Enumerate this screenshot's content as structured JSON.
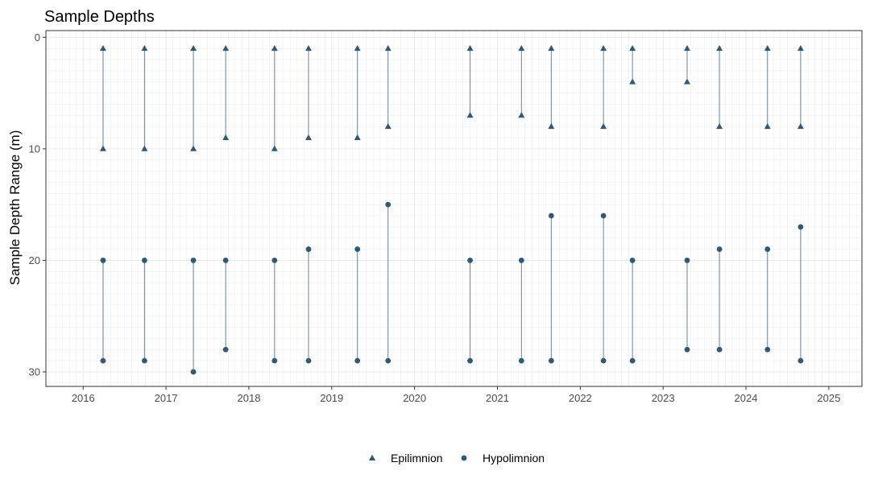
{
  "chart_data": {
    "type": "scatter",
    "title": "Sample Depths",
    "xlabel": "",
    "ylabel": "Sample Depth Range (m)",
    "x_ticks": [
      "2016",
      "2017",
      "2018",
      "2019",
      "2020",
      "2021",
      "2022",
      "2023",
      "2024",
      "2025"
    ],
    "y_ticks": [
      "0",
      "10",
      "20",
      "30"
    ],
    "xlim": [
      2015.55,
      2025.4
    ],
    "ylim": [
      31.3,
      -0.6
    ],
    "y_reversed": true,
    "grid": true,
    "legend_position": "bottom",
    "colors": {
      "points": "#2e5a7a",
      "segments": "#708090",
      "grid": "#ebebeb",
      "panel_border": "#333333"
    },
    "series": [
      {
        "name": "Epilimnion",
        "marker": "triangle",
        "points": [
          {
            "x": 2016.24,
            "top": 1,
            "bottom": 10
          },
          {
            "x": 2016.74,
            "top": 1,
            "bottom": 10
          },
          {
            "x": 2017.33,
            "top": 1,
            "bottom": 10
          },
          {
            "x": 2017.72,
            "top": 1,
            "bottom": 9
          },
          {
            "x": 2018.31,
            "top": 1,
            "bottom": 10
          },
          {
            "x": 2018.72,
            "top": 1,
            "bottom": 9
          },
          {
            "x": 2019.31,
            "top": 1,
            "bottom": 9
          },
          {
            "x": 2019.68,
            "top": 1,
            "bottom": 8
          },
          {
            "x": 2020.67,
            "top": 1,
            "bottom": 7
          },
          {
            "x": 2021.29,
            "top": 1,
            "bottom": 7
          },
          {
            "x": 2021.65,
            "top": 1,
            "bottom": 8
          },
          {
            "x": 2022.28,
            "top": 1,
            "bottom": 8
          },
          {
            "x": 2022.63,
            "top": 1,
            "bottom": 4
          },
          {
            "x": 2023.29,
            "top": 1,
            "bottom": 4
          },
          {
            "x": 2023.68,
            "top": 1,
            "bottom": 8
          },
          {
            "x": 2024.26,
            "top": 1,
            "bottom": 8
          },
          {
            "x": 2024.66,
            "top": 1,
            "bottom": 8
          }
        ]
      },
      {
        "name": "Hypolimnion",
        "marker": "circle",
        "points": [
          {
            "x": 2016.24,
            "top": 20,
            "bottom": 29
          },
          {
            "x": 2016.74,
            "top": 20,
            "bottom": 29
          },
          {
            "x": 2017.33,
            "top": 20,
            "bottom": 30
          },
          {
            "x": 2017.72,
            "top": 20,
            "bottom": 28
          },
          {
            "x": 2018.31,
            "top": 20,
            "bottom": 29
          },
          {
            "x": 2018.72,
            "top": 19,
            "bottom": 29
          },
          {
            "x": 2019.31,
            "top": 19,
            "bottom": 29
          },
          {
            "x": 2019.68,
            "top": 15,
            "bottom": 29
          },
          {
            "x": 2020.67,
            "top": 20,
            "bottom": 29
          },
          {
            "x": 2021.29,
            "top": 20,
            "bottom": 29
          },
          {
            "x": 2021.65,
            "top": 16,
            "bottom": 29
          },
          {
            "x": 2022.28,
            "top": 16,
            "bottom": 29
          },
          {
            "x": 2022.63,
            "top": 20,
            "bottom": 29
          },
          {
            "x": 2023.29,
            "top": 20,
            "bottom": 28
          },
          {
            "x": 2023.68,
            "top": 19,
            "bottom": 28
          },
          {
            "x": 2024.26,
            "top": 19,
            "bottom": 28
          },
          {
            "x": 2024.66,
            "top": 17,
            "bottom": 29
          }
        ]
      }
    ]
  }
}
